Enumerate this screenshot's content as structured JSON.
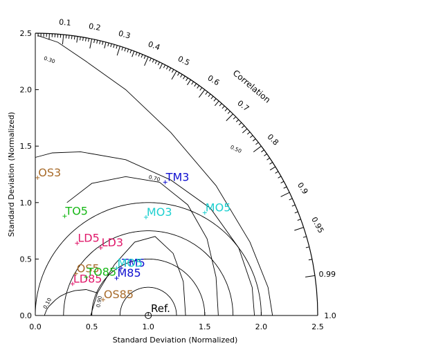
{
  "chart_data": {
    "type": "scatter",
    "subtype": "taylor-diagram",
    "xlabel": "Standard Deviation (Normalized)",
    "ylabel": "Standard Deviation (Normalized)",
    "arc_label": "Correlation",
    "reference_label": "Ref.",
    "xlim": [
      0,
      2.5
    ],
    "ylim": [
      0,
      2.5
    ],
    "x_ticks": [
      "0.0",
      "0.5",
      "1.0",
      "1.5",
      "2.0",
      "2.5"
    ],
    "y_ticks": [
      "0.0",
      "0.5",
      "1.0",
      "1.5",
      "2.0",
      "2.5"
    ],
    "correlation_ticks": [
      {
        "value": 0.1,
        "label": "0.1"
      },
      {
        "value": 0.2,
        "label": "0.2"
      },
      {
        "value": 0.3,
        "label": "0.3"
      },
      {
        "value": 0.4,
        "label": "0.4"
      },
      {
        "value": 0.5,
        "label": "0.5"
      },
      {
        "value": 0.6,
        "label": "0.6"
      },
      {
        "value": 0.7,
        "label": "0.7"
      },
      {
        "value": 0.8,
        "label": "0.8"
      },
      {
        "value": 0.9,
        "label": "0.9"
      },
      {
        "value": 0.95,
        "label": "0.95"
      },
      {
        "value": 0.99,
        "label": "0.99"
      },
      {
        "value": 1.0,
        "label": "1.0"
      }
    ],
    "skill_contour_labels": [
      {
        "value": 0.1,
        "label": "0.10"
      },
      {
        "value": 0.3,
        "label": "0.30"
      },
      {
        "value": 0.5,
        "label": "0.50"
      },
      {
        "value": 0.7,
        "label": "0.70"
      },
      {
        "value": 0.9,
        "label": "0.90"
      }
    ],
    "skill_contours": [
      {
        "label": "0.10",
        "x": [
          0.08,
          0.1,
          0.12,
          0.15,
          0.18,
          0.22,
          0.28,
          0.35,
          0.45,
          0.55
        ],
        "y": [
          0.0,
          0.05,
          0.08,
          0.11,
          0.14,
          0.17,
          0.2,
          0.22,
          0.23,
          0.2
        ]
      },
      {
        "label": "0.30",
        "x": [
          0.02,
          0.2,
          0.45,
          0.8,
          1.2,
          1.6,
          1.9,
          2.06,
          2.1
        ],
        "y": [
          2.48,
          2.42,
          2.25,
          2.0,
          1.62,
          1.15,
          0.65,
          0.25,
          0.0
        ]
      },
      {
        "label": "0.50",
        "x": [
          0.0,
          0.15,
          0.4,
          0.8,
          1.2,
          1.55,
          1.8,
          1.92,
          1.94
        ],
        "y": [
          1.4,
          1.44,
          1.45,
          1.38,
          1.2,
          0.95,
          0.6,
          0.25,
          0.0
        ]
      },
      {
        "label": "0.70",
        "x": [
          0.28,
          0.5,
          0.8,
          1.1,
          1.35,
          1.52,
          1.6,
          1.62
        ],
        "y": [
          1.0,
          1.17,
          1.23,
          1.18,
          0.98,
          0.68,
          0.34,
          0.0
        ]
      },
      {
        "label": "0.90",
        "x": [
          0.49,
          0.55,
          0.7,
          0.88,
          1.06,
          1.22,
          1.31,
          1.33
        ],
        "y": [
          0.0,
          0.2,
          0.45,
          0.65,
          0.7,
          0.55,
          0.3,
          0.0
        ]
      }
    ],
    "series": [
      {
        "name": "OS3",
        "color": "#a86b2a",
        "x": [
          0.02
        ],
        "y": [
          1.22
        ]
      },
      {
        "name": "TM3",
        "color": "#1010d0",
        "x": [
          1.15
        ],
        "y": [
          1.18
        ]
      },
      {
        "name": "TO5",
        "color": "#18b818",
        "x": [
          0.26
        ],
        "y": [
          0.88
        ]
      },
      {
        "name": "MO3",
        "color": "#1ed0d0",
        "x": [
          0.98
        ],
        "y": [
          0.87
        ]
      },
      {
        "name": "MO5",
        "color": "#1ed0d0",
        "x": [
          1.5
        ],
        "y": [
          0.91
        ]
      },
      {
        "name": "LD5",
        "color": "#e0186a",
        "x": [
          0.37
        ],
        "y": [
          0.64
        ]
      },
      {
        "name": "LD3",
        "color": "#e0186a",
        "x": [
          0.58
        ],
        "y": [
          0.6
        ]
      },
      {
        "name": "TM5",
        "color": "#1010d0",
        "x": [
          0.76
        ],
        "y": [
          0.42
        ]
      },
      {
        "name": "M85",
        "color": "#1010d0",
        "x": [
          0.72
        ],
        "y": [
          0.33
        ]
      },
      {
        "name": "MO5",
        "color": "#1ed0d0",
        "x": [
          0.72
        ],
        "y": [
          0.42
        ]
      },
      {
        "name": "OS5",
        "color": "#a86b2a",
        "x": [
          0.36
        ],
        "y": [
          0.37
        ]
      },
      {
        "name": "LD85",
        "color": "#e0186a",
        "x": [
          0.33
        ],
        "y": [
          0.28
        ]
      },
      {
        "name": "TO85",
        "color": "#18b818",
        "x": [
          0.45
        ],
        "y": [
          0.34
        ]
      },
      {
        "name": "OS85",
        "color": "#a86b2a",
        "x": [
          0.6
        ],
        "y": [
          0.14
        ]
      }
    ],
    "reference": {
      "x": 1.0,
      "y": 0.0
    }
  }
}
